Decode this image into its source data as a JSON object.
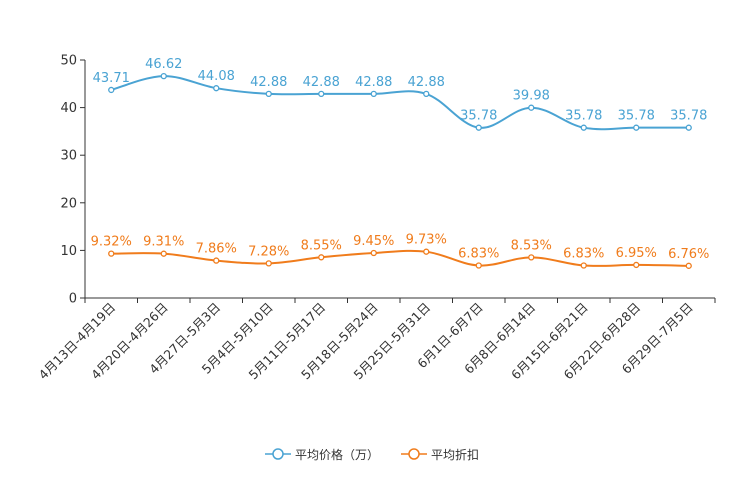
{
  "chart_data": {
    "type": "line",
    "title": "",
    "xlabel": "",
    "ylabel": "",
    "ylim": [
      0,
      50
    ],
    "yticks": [
      0,
      10,
      20,
      30,
      40,
      50
    ],
    "grid": false,
    "legend_position": "bottom-center",
    "categories": [
      "4月13日-4月19日",
      "4月20日-4月26日",
      "4月27日-5月3日",
      "5月4日-5月10日",
      "5月11日-5月17日",
      "5月18日-5月24日",
      "5月25日-5月31日",
      "6月1日-6月7日",
      "6月8日-6月14日",
      "6月15日-6月21日",
      "6月22日-6月28日",
      "6月29日-7月5日"
    ],
    "series": [
      {
        "name": "平均价格（万）",
        "color": "#4aa3d3",
        "values": [
          43.71,
          46.62,
          44.08,
          42.88,
          42.88,
          42.88,
          42.88,
          35.78,
          39.98,
          35.78,
          35.78,
          35.78
        ],
        "labels": [
          "43.71",
          "46.62",
          "44.08",
          "42.88",
          "42.88",
          "42.88",
          "42.88",
          "35.78",
          "39.98",
          "35.78",
          "35.78",
          "35.78"
        ]
      },
      {
        "name": "平均折扣",
        "color": "#f07c1c",
        "values": [
          9.32,
          9.31,
          7.86,
          7.28,
          8.55,
          9.45,
          9.73,
          6.83,
          8.53,
          6.83,
          6.95,
          6.76
        ],
        "labels": [
          "9.32%",
          "9.31%",
          "7.86%",
          "7.28%",
          "8.55%",
          "9.45%",
          "9.73%",
          "6.83%",
          "8.53%",
          "6.83%",
          "6.95%",
          "6.76%"
        ]
      }
    ]
  }
}
